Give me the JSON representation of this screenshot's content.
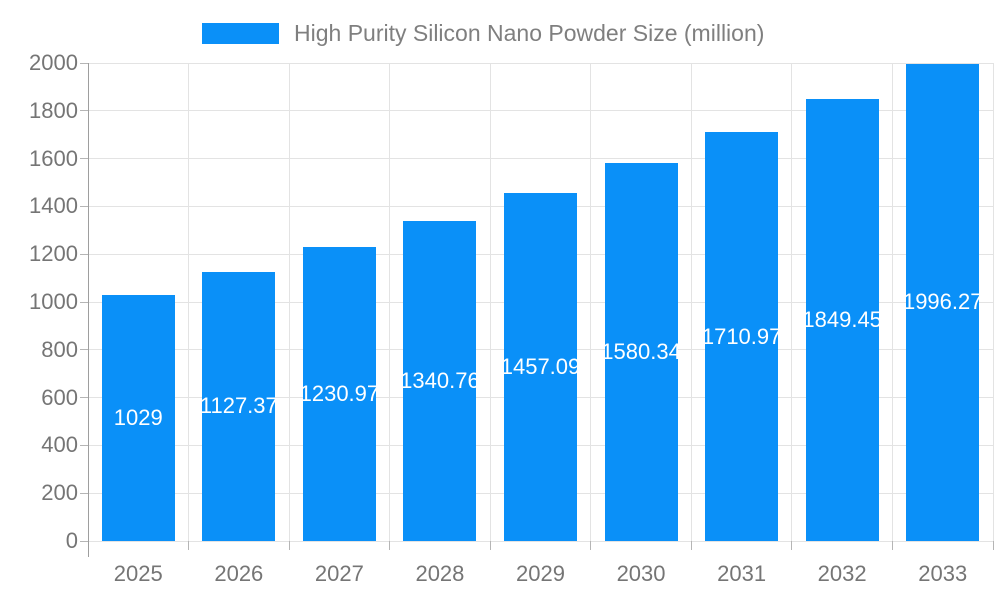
{
  "chart_data": {
    "type": "bar",
    "title": "High Purity Silicon Nano Powder Size (million)",
    "categories": [
      "2025",
      "2026",
      "2027",
      "2028",
      "2029",
      "2030",
      "2031",
      "2032",
      "2033"
    ],
    "values": [
      1029,
      1127.37,
      1230.97,
      1340.76,
      1457.09,
      1580.34,
      1710.97,
      1849.45,
      1996.27
    ],
    "bar_value_labels": [
      "1029",
      "1127.37",
      "1230.97",
      "1340.76",
      "1457.09",
      "1580.34",
      "1710.97",
      "1849.45",
      "1996.27"
    ],
    "xlabel": "",
    "ylabel": "",
    "ylim": [
      0,
      2000
    ],
    "ytick_step": 200,
    "ytick_labels": [
      "0",
      "200",
      "400",
      "600",
      "800",
      "1000",
      "1200",
      "1400",
      "1600",
      "1800",
      "2000"
    ],
    "grid": true,
    "legend_position": "top-center",
    "legend_entries": [
      "High Purity Silicon Nano Powder Size (million)"
    ]
  },
  "colors": {
    "bar_fill": "#0a90f8",
    "grid_line": "#e3e3e3",
    "axis_line": "#9e9e9e",
    "tick_mark": "#b5b5b5",
    "axis_text": "#757575",
    "legend_text": "#7f7f7f",
    "bar_label_text": "#ffffff",
    "background": "#ffffff"
  }
}
